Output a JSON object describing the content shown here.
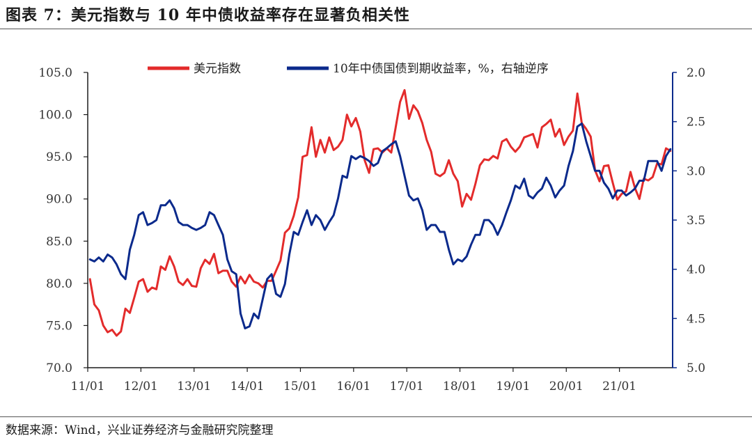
{
  "title": "图表 7：美元指数与 10 年中债收益率存在显著负相关性",
  "source": "数据来源：Wind，兴业证券经济与金融研究院整理",
  "chart_data": {
    "type": "line",
    "x_tick_labels": [
      "11/01",
      "12/01",
      "13/01",
      "14/01",
      "15/01",
      "16/01",
      "17/01",
      "18/01",
      "19/01",
      "20/01",
      "21/01"
    ],
    "x_range": [
      "2011-01",
      "2021-12"
    ],
    "left_axis": {
      "ylim": [
        70,
        105
      ],
      "ticks": [
        "70.0",
        "75.0",
        "80.0",
        "85.0",
        "90.0",
        "95.0",
        "100.0",
        "105.0"
      ]
    },
    "right_axis": {
      "ylim": [
        2.0,
        5.0
      ],
      "inverted": true,
      "ticks": [
        "2.0",
        "2.5",
        "3.0",
        "3.5",
        "4.0",
        "4.5",
        "5.0"
      ]
    },
    "legend_position": "top",
    "series": [
      {
        "name": "美元指数",
        "axis": "left",
        "color": "#e32b2b",
        "points": [
          [
            "2011-01",
            80.5
          ],
          [
            "2011-02",
            77.5
          ],
          [
            "2011-03",
            76.8
          ],
          [
            "2011-04",
            75.0
          ],
          [
            "2011-05",
            74.2
          ],
          [
            "2011-06",
            74.5
          ],
          [
            "2011-07",
            73.8
          ],
          [
            "2011-08",
            74.3
          ],
          [
            "2011-09",
            77.0
          ],
          [
            "2011-10",
            76.5
          ],
          [
            "2011-11",
            78.3
          ],
          [
            "2011-12",
            80.2
          ],
          [
            "2012-01",
            80.5
          ],
          [
            "2012-02",
            79.0
          ],
          [
            "2012-03",
            79.5
          ],
          [
            "2012-04",
            79.3
          ],
          [
            "2012-05",
            82.0
          ],
          [
            "2012-06",
            81.6
          ],
          [
            "2012-07",
            83.2
          ],
          [
            "2012-08",
            82.0
          ],
          [
            "2012-09",
            80.2
          ],
          [
            "2012-10",
            79.8
          ],
          [
            "2012-11",
            80.5
          ],
          [
            "2012-12",
            79.7
          ],
          [
            "2013-01",
            79.6
          ],
          [
            "2013-02",
            81.8
          ],
          [
            "2013-03",
            82.8
          ],
          [
            "2013-04",
            82.3
          ],
          [
            "2013-05",
            83.5
          ],
          [
            "2013-06",
            81.2
          ],
          [
            "2013-07",
            81.5
          ],
          [
            "2013-08",
            81.5
          ],
          [
            "2013-09",
            80.2
          ],
          [
            "2013-10",
            79.6
          ],
          [
            "2013-11",
            80.8
          ],
          [
            "2013-12",
            80.0
          ],
          [
            "2014-01",
            81.0
          ],
          [
            "2014-02",
            80.2
          ],
          [
            "2014-03",
            80.0
          ],
          [
            "2014-04",
            79.5
          ],
          [
            "2014-05",
            80.3
          ],
          [
            "2014-06",
            80.3
          ],
          [
            "2014-07",
            81.5
          ],
          [
            "2014-08",
            82.7
          ],
          [
            "2014-09",
            86.0
          ],
          [
            "2014-10",
            86.5
          ],
          [
            "2014-11",
            88.0
          ],
          [
            "2014-12",
            90.2
          ],
          [
            "2015-01",
            95.0
          ],
          [
            "2015-02",
            95.2
          ],
          [
            "2015-03",
            98.5
          ],
          [
            "2015-04",
            95.0
          ],
          [
            "2015-05",
            97.0
          ],
          [
            "2015-06",
            95.5
          ],
          [
            "2015-07",
            97.3
          ],
          [
            "2015-08",
            95.8
          ],
          [
            "2015-09",
            96.2
          ],
          [
            "2015-10",
            97.0
          ],
          [
            "2015-11",
            100.0
          ],
          [
            "2015-12",
            98.6
          ],
          [
            "2016-01",
            99.6
          ],
          [
            "2016-02",
            98.0
          ],
          [
            "2016-03",
            94.6
          ],
          [
            "2016-04",
            93.1
          ],
          [
            "2016-05",
            95.9
          ],
          [
            "2016-06",
            96.0
          ],
          [
            "2016-07",
            95.5
          ],
          [
            "2016-08",
            96.0
          ],
          [
            "2016-09",
            95.5
          ],
          [
            "2016-10",
            98.5
          ],
          [
            "2016-11",
            101.5
          ],
          [
            "2016-12",
            102.9
          ],
          [
            "2017-01",
            99.5
          ],
          [
            "2017-02",
            101.1
          ],
          [
            "2017-03",
            100.4
          ],
          [
            "2017-04",
            99.0
          ],
          [
            "2017-05",
            97.0
          ],
          [
            "2017-06",
            95.6
          ],
          [
            "2017-07",
            93.0
          ],
          [
            "2017-08",
            92.7
          ],
          [
            "2017-09",
            93.1
          ],
          [
            "2017-10",
            94.6
          ],
          [
            "2017-11",
            93.0
          ],
          [
            "2017-12",
            92.1
          ],
          [
            "2018-01",
            89.1
          ],
          [
            "2018-02",
            90.6
          ],
          [
            "2018-03",
            89.9
          ],
          [
            "2018-04",
            91.8
          ],
          [
            "2018-05",
            94.0
          ],
          [
            "2018-06",
            94.7
          ],
          [
            "2018-07",
            94.6
          ],
          [
            "2018-08",
            95.1
          ],
          [
            "2018-09",
            94.8
          ],
          [
            "2018-10",
            96.8
          ],
          [
            "2018-11",
            97.1
          ],
          [
            "2018-12",
            96.2
          ],
          [
            "2019-01",
            95.6
          ],
          [
            "2019-02",
            96.2
          ],
          [
            "2019-03",
            97.3
          ],
          [
            "2019-04",
            97.5
          ],
          [
            "2019-05",
            97.7
          ],
          [
            "2019-06",
            96.1
          ],
          [
            "2019-07",
            98.5
          ],
          [
            "2019-08",
            98.9
          ],
          [
            "2019-09",
            99.4
          ],
          [
            "2019-10",
            97.4
          ],
          [
            "2019-11",
            98.3
          ],
          [
            "2019-12",
            96.4
          ],
          [
            "2020-01",
            97.4
          ],
          [
            "2020-02",
            98.1
          ],
          [
            "2020-03",
            102.5
          ],
          [
            "2020-04",
            99.0
          ],
          [
            "2020-05",
            98.3
          ],
          [
            "2020-06",
            97.4
          ],
          [
            "2020-07",
            93.4
          ],
          [
            "2020-08",
            92.1
          ],
          [
            "2020-09",
            93.9
          ],
          [
            "2020-10",
            94.0
          ],
          [
            "2020-11",
            91.9
          ],
          [
            "2020-12",
            89.9
          ],
          [
            "2021-01",
            90.6
          ],
          [
            "2021-02",
            90.9
          ],
          [
            "2021-03",
            93.2
          ],
          [
            "2021-04",
            91.3
          ],
          [
            "2021-05",
            90.0
          ],
          [
            "2021-06",
            92.4
          ],
          [
            "2021-07",
            92.2
          ],
          [
            "2021-08",
            92.6
          ],
          [
            "2021-09",
            94.2
          ],
          [
            "2021-10",
            94.1
          ],
          [
            "2021-11",
            96.0
          ],
          [
            "2021-12",
            95.7
          ]
        ]
      },
      {
        "name": "10年中债国债到期收益率，%，右轴逆序",
        "axis": "right",
        "color": "#0b2a8c",
        "points": [
          [
            "2011-01",
            3.9
          ],
          [
            "2011-02",
            3.92
          ],
          [
            "2011-03",
            3.88
          ],
          [
            "2011-04",
            3.92
          ],
          [
            "2011-05",
            3.85
          ],
          [
            "2011-06",
            3.88
          ],
          [
            "2011-07",
            3.95
          ],
          [
            "2011-08",
            4.05
          ],
          [
            "2011-09",
            4.1
          ],
          [
            "2011-10",
            3.8
          ],
          [
            "2011-11",
            3.65
          ],
          [
            "2011-12",
            3.45
          ],
          [
            "2012-01",
            3.42
          ],
          [
            "2012-02",
            3.55
          ],
          [
            "2012-03",
            3.53
          ],
          [
            "2012-04",
            3.5
          ],
          [
            "2012-05",
            3.35
          ],
          [
            "2012-06",
            3.35
          ],
          [
            "2012-07",
            3.3
          ],
          [
            "2012-08",
            3.38
          ],
          [
            "2012-09",
            3.52
          ],
          [
            "2012-10",
            3.55
          ],
          [
            "2012-11",
            3.55
          ],
          [
            "2012-12",
            3.58
          ],
          [
            "2013-01",
            3.6
          ],
          [
            "2013-02",
            3.58
          ],
          [
            "2013-03",
            3.55
          ],
          [
            "2013-04",
            3.42
          ],
          [
            "2013-05",
            3.45
          ],
          [
            "2013-06",
            3.55
          ],
          [
            "2013-07",
            3.65
          ],
          [
            "2013-08",
            3.9
          ],
          [
            "2013-09",
            4.02
          ],
          [
            "2013-10",
            4.05
          ],
          [
            "2013-11",
            4.45
          ],
          [
            "2013-12",
            4.6
          ],
          [
            "2014-01",
            4.58
          ],
          [
            "2014-02",
            4.45
          ],
          [
            "2014-03",
            4.5
          ],
          [
            "2014-04",
            4.3
          ],
          [
            "2014-05",
            4.1
          ],
          [
            "2014-06",
            4.05
          ],
          [
            "2014-07",
            4.25
          ],
          [
            "2014-08",
            4.28
          ],
          [
            "2014-09",
            4.15
          ],
          [
            "2014-10",
            3.85
          ],
          [
            "2014-11",
            3.62
          ],
          [
            "2014-12",
            3.65
          ],
          [
            "2015-01",
            3.52
          ],
          [
            "2015-02",
            3.4
          ],
          [
            "2015-03",
            3.55
          ],
          [
            "2015-04",
            3.45
          ],
          [
            "2015-05",
            3.5
          ],
          [
            "2015-06",
            3.6
          ],
          [
            "2015-07",
            3.52
          ],
          [
            "2015-08",
            3.45
          ],
          [
            "2015-09",
            3.28
          ],
          [
            "2015-10",
            3.05
          ],
          [
            "2015-11",
            3.07
          ],
          [
            "2015-12",
            2.85
          ],
          [
            "2016-01",
            2.88
          ],
          [
            "2016-02",
            2.85
          ],
          [
            "2016-03",
            2.87
          ],
          [
            "2016-04",
            2.9
          ],
          [
            "2016-05",
            2.95
          ],
          [
            "2016-06",
            2.92
          ],
          [
            "2016-07",
            2.8
          ],
          [
            "2016-08",
            2.77
          ],
          [
            "2016-09",
            2.73
          ],
          [
            "2016-10",
            2.7
          ],
          [
            "2016-11",
            2.85
          ],
          [
            "2016-12",
            3.05
          ],
          [
            "2017-01",
            3.25
          ],
          [
            "2017-02",
            3.3
          ],
          [
            "2017-03",
            3.28
          ],
          [
            "2017-04",
            3.4
          ],
          [
            "2017-05",
            3.6
          ],
          [
            "2017-06",
            3.55
          ],
          [
            "2017-07",
            3.55
          ],
          [
            "2017-08",
            3.62
          ],
          [
            "2017-09",
            3.62
          ],
          [
            "2017-10",
            3.8
          ],
          [
            "2017-11",
            3.95
          ],
          [
            "2017-12",
            3.9
          ],
          [
            "2018-01",
            3.92
          ],
          [
            "2018-02",
            3.87
          ],
          [
            "2018-03",
            3.75
          ],
          [
            "2018-04",
            3.65
          ],
          [
            "2018-05",
            3.65
          ],
          [
            "2018-06",
            3.5
          ],
          [
            "2018-07",
            3.5
          ],
          [
            "2018-08",
            3.55
          ],
          [
            "2018-09",
            3.65
          ],
          [
            "2018-10",
            3.55
          ],
          [
            "2018-11",
            3.42
          ],
          [
            "2018-12",
            3.3
          ],
          [
            "2019-01",
            3.15
          ],
          [
            "2019-02",
            3.18
          ],
          [
            "2019-03",
            3.08
          ],
          [
            "2019-04",
            3.25
          ],
          [
            "2019-05",
            3.28
          ],
          [
            "2019-06",
            3.22
          ],
          [
            "2019-07",
            3.18
          ],
          [
            "2019-08",
            3.07
          ],
          [
            "2019-09",
            3.15
          ],
          [
            "2019-10",
            3.27
          ],
          [
            "2019-11",
            3.2
          ],
          [
            "2019-12",
            3.15
          ],
          [
            "2020-01",
            2.95
          ],
          [
            "2020-02",
            2.8
          ],
          [
            "2020-03",
            2.55
          ],
          [
            "2020-04",
            2.52
          ],
          [
            "2020-05",
            2.7
          ],
          [
            "2020-06",
            2.85
          ],
          [
            "2020-07",
            3.0
          ],
          [
            "2020-08",
            3.0
          ],
          [
            "2020-09",
            3.12
          ],
          [
            "2020-10",
            3.18
          ],
          [
            "2020-11",
            3.28
          ],
          [
            "2020-12",
            3.2
          ],
          [
            "2021-01",
            3.2
          ],
          [
            "2021-02",
            3.25
          ],
          [
            "2021-03",
            3.22
          ],
          [
            "2021-04",
            3.18
          ],
          [
            "2021-05",
            3.1
          ],
          [
            "2021-06",
            3.1
          ],
          [
            "2021-07",
            2.9
          ],
          [
            "2021-08",
            2.9
          ],
          [
            "2021-09",
            2.9
          ],
          [
            "2021-10",
            3.0
          ],
          [
            "2021-11",
            2.85
          ],
          [
            "2021-12",
            2.78
          ]
        ]
      }
    ]
  }
}
